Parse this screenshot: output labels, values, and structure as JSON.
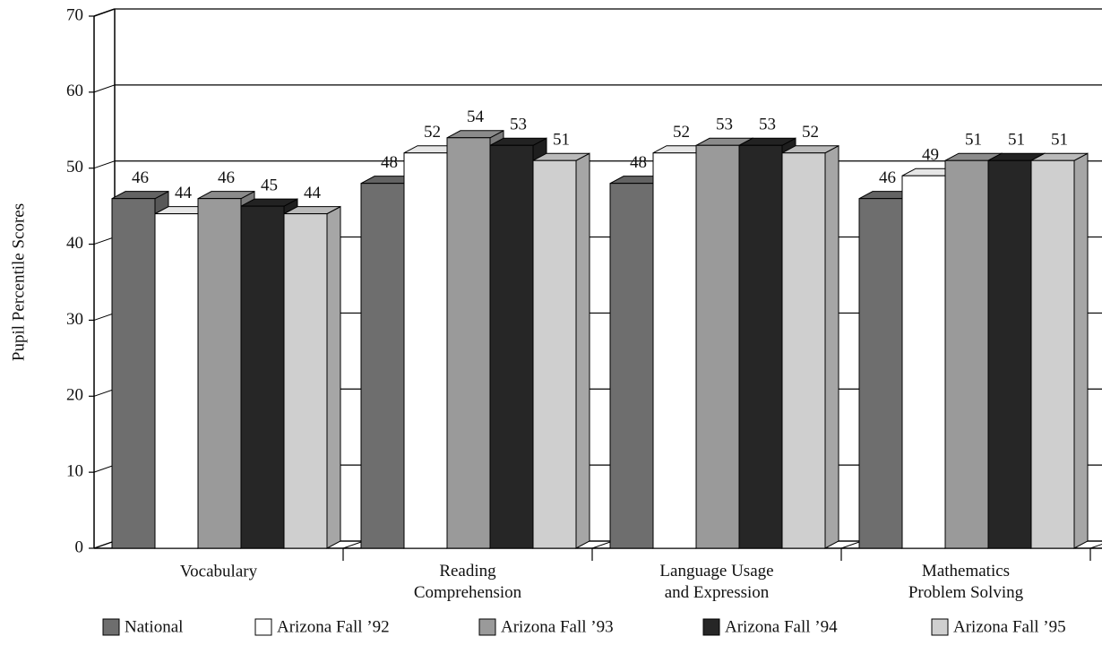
{
  "chart_data": {
    "type": "bar3d",
    "y_label": "Pupil Percentile Scores",
    "categories": [
      "Vocabulary",
      "Reading\nComprehension",
      "Language Usage\nand Expression",
      "Mathematics\nProblem Solving"
    ],
    "series": [
      {
        "name": "National",
        "color": "#6e6e6e",
        "values": [
          46,
          48,
          48,
          46
        ]
      },
      {
        "name": "Arizona Fall ’92",
        "color": "#ffffff",
        "values": [
          44,
          52,
          52,
          49
        ]
      },
      {
        "name": "Arizona Fall ’93",
        "color": "#9a9a9a",
        "values": [
          46,
          54,
          53,
          51
        ]
      },
      {
        "name": "Arizona Fall ’94",
        "color": "#262626",
        "values": [
          45,
          53,
          53,
          51
        ]
      },
      {
        "name": "Arizona Fall ’95",
        "color": "#cfcfcf",
        "values": [
          44,
          51,
          52,
          51
        ]
      }
    ],
    "ylim": [
      0,
      70
    ],
    "yticks": [
      0,
      10,
      20,
      30,
      40,
      50,
      60,
      70
    ],
    "grid": true
  }
}
